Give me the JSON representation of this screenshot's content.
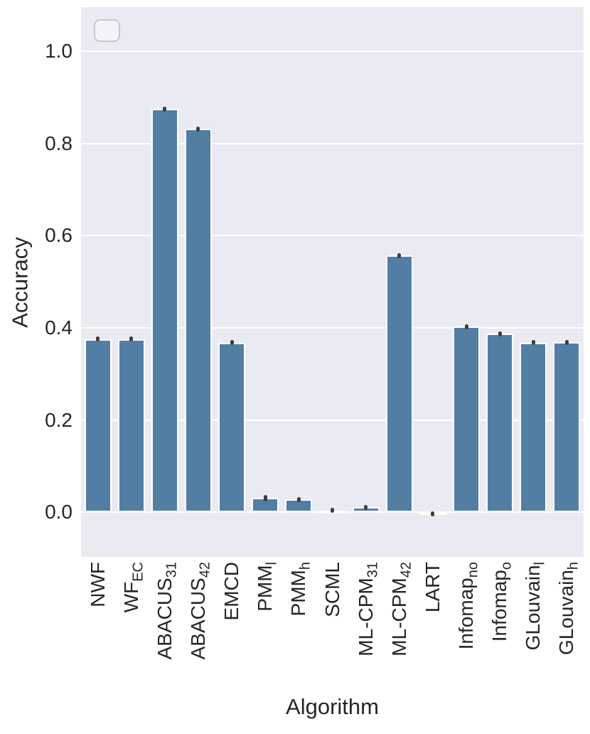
{
  "figure": {
    "background": "#ffffff"
  },
  "legend": {
    "visible": true,
    "entries": []
  },
  "chart_data": {
    "type": "bar",
    "title": "",
    "xlabel": "Algorithm",
    "ylabel": "Accuracy",
    "ylim": [
      -0.097,
      1.096
    ],
    "ytick_labels": [
      "0.0",
      "0.2",
      "0.4",
      "0.6",
      "0.8",
      "1.0"
    ],
    "grid": true,
    "legend_position": "upper-left-empty",
    "categories": [
      {
        "main": "NWF",
        "sub": ""
      },
      {
        "main": "WF",
        "sub": "EC"
      },
      {
        "main": "ABACUS",
        "sub": "31"
      },
      {
        "main": "ABACUS",
        "sub": "42"
      },
      {
        "main": "EMCD",
        "sub": ""
      },
      {
        "main": "PMM",
        "sub": "l"
      },
      {
        "main": "PMM",
        "sub": "h"
      },
      {
        "main": "SCML",
        "sub": ""
      },
      {
        "main": "ML-CPM",
        "sub": "31"
      },
      {
        "main": "ML-CPM",
        "sub": "42"
      },
      {
        "main": "LART",
        "sub": ""
      },
      {
        "main": "Infomap",
        "sub": "no"
      },
      {
        "main": "Infomap",
        "sub": "o"
      },
      {
        "main": "GLouvain",
        "sub": "l"
      },
      {
        "main": "GLouvain",
        "sub": "h"
      }
    ],
    "values": [
      0.376,
      0.376,
      0.875,
      0.832,
      0.368,
      0.031,
      0.028,
      0.004,
      0.011,
      0.557,
      -0.003,
      0.403,
      0.387,
      0.368,
      0.369
    ],
    "errors": [
      0.004,
      0.004,
      0.004,
      0.004,
      0.004,
      0.007,
      0.005,
      0.004,
      0.004,
      0.004,
      0.003,
      0.004,
      0.004,
      0.004,
      0.004
    ],
    "colors": {
      "bar": "#527EA4",
      "bar_edge": "#FFFFFF",
      "error": "#3D3D3D",
      "plot_background": "#EAEAF2",
      "grid": "#FFFFFF",
      "text": "#262626"
    }
  }
}
